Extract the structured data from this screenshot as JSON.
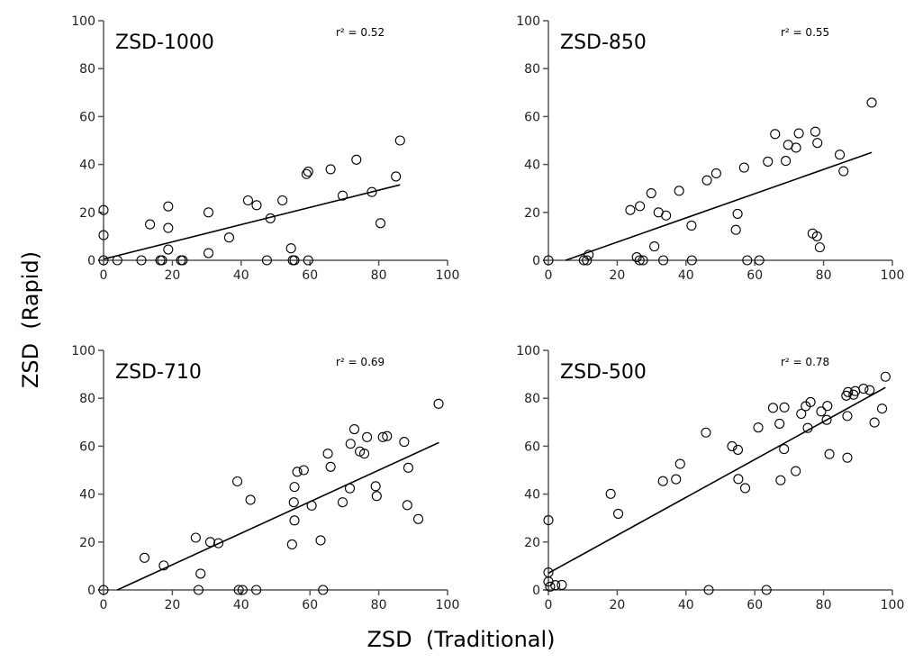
{
  "chart_data": [
    {
      "type": "scatter",
      "title": "ZSD-1000",
      "annotation": "r² = 0.52",
      "xlim": [
        0,
        100
      ],
      "ylim": [
        0,
        100
      ],
      "xticks": [
        "0",
        "20",
        "40",
        "60",
        "80",
        "100"
      ],
      "yticks": [
        "0",
        "20",
        "40",
        "60",
        "80",
        "100"
      ],
      "points": [
        [
          0,
          21
        ],
        [
          0,
          10.5
        ],
        [
          0,
          0
        ],
        [
          4,
          0
        ],
        [
          11,
          0
        ],
        [
          13.5,
          15
        ],
        [
          16.5,
          0
        ],
        [
          17,
          0
        ],
        [
          18.8,
          22.5
        ],
        [
          18.8,
          13.5
        ],
        [
          18.8,
          4.5
        ],
        [
          22.5,
          0
        ],
        [
          23,
          0
        ],
        [
          30.5,
          20
        ],
        [
          30.5,
          3
        ],
        [
          36.5,
          9.5
        ],
        [
          42,
          25
        ],
        [
          44.5,
          23
        ],
        [
          47.5,
          0
        ],
        [
          48.5,
          17.5
        ],
        [
          52,
          25
        ],
        [
          54.5,
          5
        ],
        [
          55,
          0
        ],
        [
          55.5,
          0
        ],
        [
          59,
          36
        ],
        [
          59.5,
          37
        ],
        [
          59.5,
          0
        ],
        [
          66,
          38
        ],
        [
          69.5,
          27
        ],
        [
          73.5,
          42
        ],
        [
          78,
          28.5
        ],
        [
          80.5,
          15.5
        ],
        [
          85,
          35
        ],
        [
          86.2,
          50
        ]
      ],
      "fit_line": [
        [
          0,
          0.5
        ],
        [
          86.2,
          31.5
        ]
      ]
    },
    {
      "type": "scatter",
      "title": "ZSD-850",
      "annotation": "r² = 0.55",
      "xlim": [
        0,
        100
      ],
      "ylim": [
        0,
        100
      ],
      "xticks": [
        "0",
        "20",
        "40",
        "60",
        "80",
        "100"
      ],
      "yticks": [
        "0",
        "20",
        "40",
        "60",
        "80",
        "100"
      ],
      "points": [
        [
          0,
          0
        ],
        [
          10.3,
          0
        ],
        [
          11.2,
          0
        ],
        [
          11.7,
          2.3
        ],
        [
          23.8,
          21
        ],
        [
          25.7,
          1.3
        ],
        [
          26.6,
          22.6
        ],
        [
          26.5,
          0
        ],
        [
          27.5,
          0
        ],
        [
          29.9,
          28
        ],
        [
          30.8,
          5.8
        ],
        [
          32,
          20
        ],
        [
          33.4,
          0
        ],
        [
          34.2,
          18.7
        ],
        [
          38,
          29
        ],
        [
          41.6,
          14.5
        ],
        [
          41.7,
          0
        ],
        [
          46.1,
          33.4
        ],
        [
          48.8,
          36.3
        ],
        [
          54.5,
          12.7
        ],
        [
          55,
          19.4
        ],
        [
          56.9,
          38.7
        ],
        [
          57.8,
          0
        ],
        [
          61.3,
          0
        ],
        [
          63.8,
          41.2
        ],
        [
          65.9,
          52.7
        ],
        [
          69,
          41.5
        ],
        [
          69.7,
          48.2
        ],
        [
          72,
          47
        ],
        [
          72.8,
          53
        ],
        [
          76.8,
          11.2
        ],
        [
          77.6,
          53.7
        ],
        [
          78.1,
          10
        ],
        [
          78.2,
          49
        ],
        [
          78.9,
          5.4
        ],
        [
          84.7,
          44.1
        ],
        [
          85.8,
          37.2
        ],
        [
          94,
          65.8
        ]
      ],
      "fit_line": [
        [
          5,
          0
        ],
        [
          94,
          45
        ]
      ]
    },
    {
      "type": "scatter",
      "title": "ZSD-710",
      "annotation": "r² = 0.69",
      "xlim": [
        0,
        100
      ],
      "ylim": [
        0,
        100
      ],
      "xticks": [
        "0",
        "20",
        "40",
        "60",
        "80",
        "100"
      ],
      "yticks": [
        "0",
        "20",
        "40",
        "60",
        "80",
        "100"
      ],
      "points": [
        [
          0,
          0
        ],
        [
          11.9,
          13.4
        ],
        [
          17.5,
          10.2
        ],
        [
          26.8,
          21.8
        ],
        [
          27.6,
          0
        ],
        [
          28.2,
          6.8
        ],
        [
          31,
          20
        ],
        [
          33.4,
          19.5
        ],
        [
          38.9,
          45.3
        ],
        [
          39.3,
          0
        ],
        [
          40.4,
          0
        ],
        [
          42.7,
          37.6
        ],
        [
          44.4,
          0
        ],
        [
          54.8,
          19
        ],
        [
          55.5,
          29
        ],
        [
          55.3,
          36.6
        ],
        [
          55.5,
          43
        ],
        [
          56.3,
          49.3
        ],
        [
          58.2,
          50
        ],
        [
          60.5,
          35.2
        ],
        [
          63.1,
          20.7
        ],
        [
          63.8,
          0
        ],
        [
          65.2,
          56.9
        ],
        [
          66,
          51.4
        ],
        [
          69.5,
          36.6
        ],
        [
          71.6,
          42.4
        ],
        [
          71.8,
          61
        ],
        [
          72.9,
          67.1
        ],
        [
          74.5,
          57.8
        ],
        [
          75.8,
          56.9
        ],
        [
          76.6,
          63.8
        ],
        [
          79.1,
          43.3
        ],
        [
          79.4,
          39.2
        ],
        [
          81.2,
          63.8
        ],
        [
          82.4,
          64.2
        ],
        [
          87.4,
          61.8
        ],
        [
          88.3,
          35.4
        ],
        [
          88.6,
          51
        ],
        [
          91.5,
          29.6
        ],
        [
          97.4,
          77.7
        ]
      ],
      "fit_line": [
        [
          4,
          0
        ],
        [
          97.5,
          61.5
        ]
      ]
    },
    {
      "type": "scatter",
      "title": "ZSD-500",
      "annotation": "r² = 0.78",
      "xlim": [
        0,
        100
      ],
      "ylim": [
        0,
        100
      ],
      "xticks": [
        "0",
        "20",
        "40",
        "60",
        "80",
        "100"
      ],
      "yticks": [
        "0",
        "20",
        "40",
        "60",
        "80",
        "100"
      ],
      "points": [
        [
          0,
          29.1
        ],
        [
          0,
          7.3
        ],
        [
          0,
          3.5
        ],
        [
          0.5,
          1.4
        ],
        [
          2,
          2
        ],
        [
          3.9,
          2.1
        ],
        [
          18.1,
          40.1
        ],
        [
          20.3,
          31.8
        ],
        [
          33.3,
          45.4
        ],
        [
          37.1,
          46.2
        ],
        [
          38.3,
          52.6
        ],
        [
          45.8,
          65.7
        ],
        [
          46.6,
          0
        ],
        [
          53.4,
          60
        ],
        [
          55.1,
          58.5
        ],
        [
          55.2,
          46.3
        ],
        [
          57.2,
          42.5
        ],
        [
          61,
          67.8
        ],
        [
          63.4,
          0
        ],
        [
          65.3,
          76
        ],
        [
          67.2,
          69.4
        ],
        [
          67.5,
          45.8
        ],
        [
          68.5,
          58.8
        ],
        [
          68.6,
          76.2
        ],
        [
          71.9,
          49.6
        ],
        [
          73.5,
          73.5
        ],
        [
          74.8,
          76.7
        ],
        [
          75.4,
          67.6
        ],
        [
          76.2,
          78.4
        ],
        [
          79.3,
          74.5
        ],
        [
          80.9,
          71
        ],
        [
          81.1,
          76.8
        ],
        [
          81.7,
          56.7
        ],
        [
          86.6,
          81.1
        ],
        [
          86.9,
          55.2
        ],
        [
          86.9,
          72.6
        ],
        [
          87.1,
          82.6
        ],
        [
          88.7,
          81.5
        ],
        [
          89.2,
          83
        ],
        [
          91.6,
          84
        ],
        [
          93.4,
          83.4
        ],
        [
          94.8,
          69.9
        ],
        [
          97,
          75.7
        ],
        [
          98,
          89
        ]
      ],
      "fit_line": [
        [
          0,
          7
        ],
        [
          98,
          84.5
        ]
      ]
    }
  ],
  "xlabel": "ZSD  (Traditional)",
  "ylabel": "ZSD  (Rapid)"
}
